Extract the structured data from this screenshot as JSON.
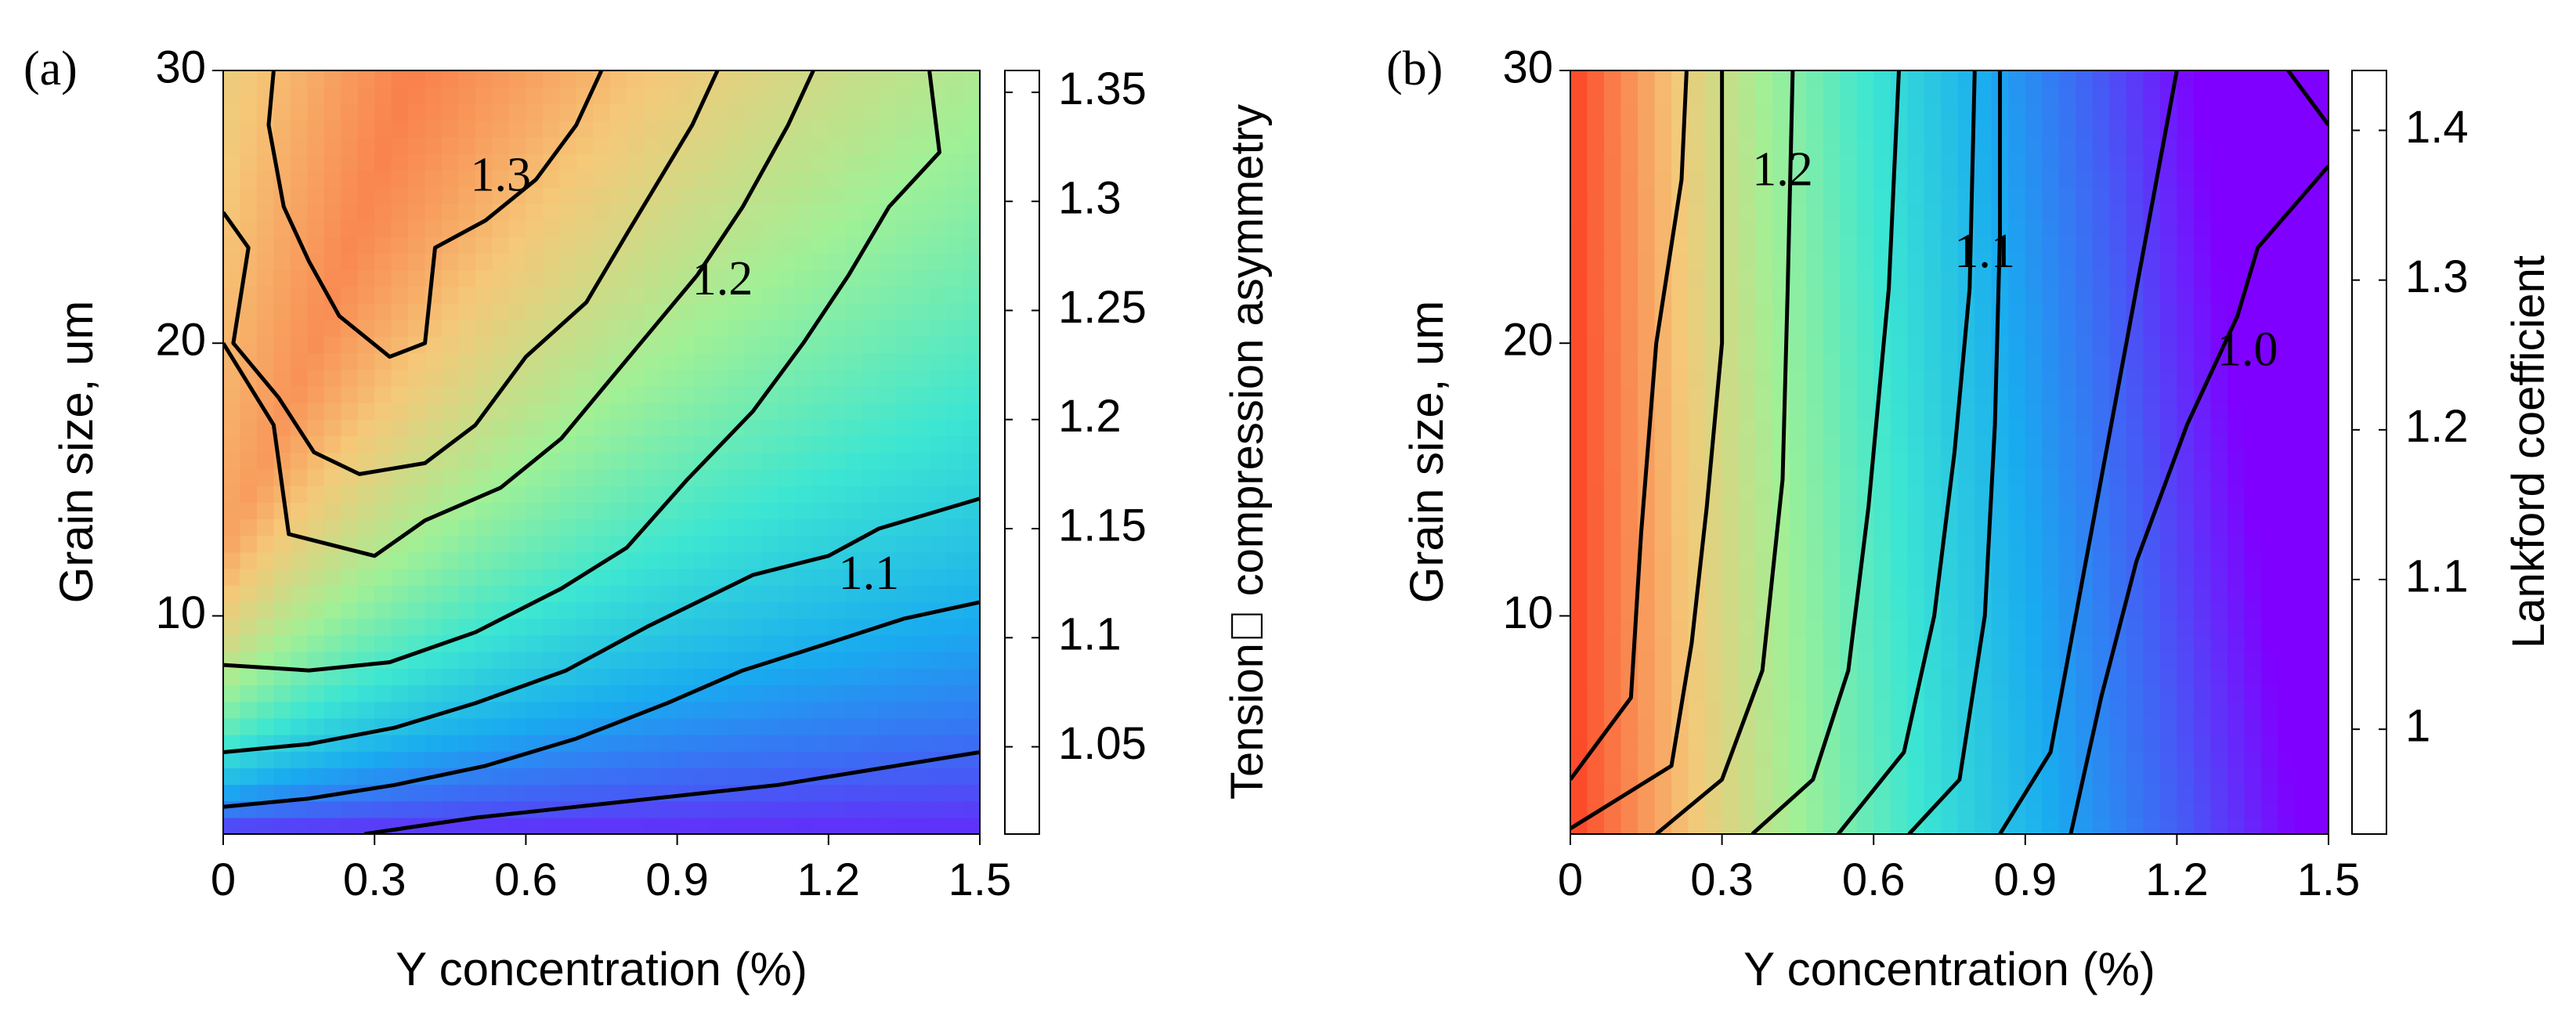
{
  "chart_data": [
    {
      "panel_label": "(a)",
      "type": "heatmap",
      "title": "",
      "xlabel": "Y concentration (%)",
      "ylabel": "Grain size, um",
      "x_ticks": [
        "0",
        "0.3",
        "0.6",
        "0.9",
        "1.2",
        "1.5"
      ],
      "x_tick_values": [
        0,
        0.3,
        0.6,
        0.9,
        1.2,
        1.5
      ],
      "y_ticks": [
        "10",
        "20",
        "30"
      ],
      "y_tick_values": [
        10,
        20,
        30
      ],
      "xlim": [
        0,
        1.5
      ],
      "ylim": [
        2,
        30
      ],
      "colorbar": {
        "label": "Tension\u0000 compression asymmetry",
        "ticks": [
          "1.05",
          "1.1",
          "1.15",
          "1.2",
          "1.25",
          "1.3",
          "1.35"
        ],
        "tick_values": [
          1.05,
          1.1,
          1.15,
          1.2,
          1.25,
          1.3,
          1.35
        ],
        "range": [
          1.01,
          1.36
        ]
      },
      "contour_labels": [
        {
          "text": "1.3",
          "x": 0.55,
          "y": 26
        },
        {
          "text": "1.2",
          "x": 0.99,
          "y": 22.2
        },
        {
          "text": "1.1",
          "x": 1.28,
          "y": 11.4
        }
      ],
      "contours": [
        {
          "level": 1.3,
          "points": [
            [
              0.1,
              30
            ],
            [
              0.09,
              28
            ],
            [
              0.12,
              25
            ],
            [
              0.17,
              23
            ],
            [
              0.23,
              21
            ],
            [
              0.33,
              19.5
            ],
            [
              0.4,
              20
            ],
            [
              0.42,
              23.5
            ],
            [
              0.52,
              24.5
            ],
            [
              0.62,
              26
            ],
            [
              0.7,
              28
            ],
            [
              0.75,
              30
            ]
          ]
        },
        {
          "level": 1.25,
          "points": [
            [
              0,
              24.8
            ],
            [
              0.05,
              23.5
            ],
            [
              0.02,
              20
            ],
            [
              0.11,
              18
            ],
            [
              0.18,
              16
            ],
            [
              0.27,
              15.2
            ],
            [
              0.4,
              15.6
            ],
            [
              0.5,
              17
            ],
            [
              0.6,
              19.5
            ],
            [
              0.72,
              21.5
            ],
            [
              0.8,
              24
            ],
            [
              0.93,
              28
            ],
            [
              0.98,
              30
            ]
          ]
        },
        {
          "level": 1.2,
          "points": [
            [
              0,
              20
            ],
            [
              0.1,
              17
            ],
            [
              0.13,
              13
            ],
            [
              0.3,
              12.2
            ],
            [
              0.4,
              13.5
            ],
            [
              0.55,
              14.7
            ],
            [
              0.67,
              16.5
            ],
            [
              0.76,
              18.5
            ],
            [
              0.85,
              20.5
            ],
            [
              0.94,
              22.5
            ],
            [
              1.03,
              25
            ],
            [
              1.12,
              28
            ],
            [
              1.17,
              30
            ]
          ]
        },
        {
          "level": 1.15,
          "points": [
            [
              0,
              8.2
            ],
            [
              0.17,
              8
            ],
            [
              0.33,
              8.3
            ],
            [
              0.5,
              9.4
            ],
            [
              0.67,
              11
            ],
            [
              0.8,
              12.5
            ],
            [
              0.92,
              15
            ],
            [
              1.05,
              17.5
            ],
            [
              1.15,
              20
            ],
            [
              1.24,
              22.5
            ],
            [
              1.32,
              25
            ],
            [
              1.42,
              27
            ],
            [
              1.4,
              30
            ]
          ]
        },
        {
          "level": 1.1,
          "points": [
            [
              0,
              5
            ],
            [
              0.17,
              5.3
            ],
            [
              0.34,
              5.9
            ],
            [
              0.5,
              6.8
            ],
            [
              0.68,
              8
            ],
            [
              0.84,
              9.6
            ],
            [
              1.05,
              11.5
            ],
            [
              1.2,
              12.2
            ],
            [
              1.3,
              13.2
            ],
            [
              1.5,
              14.3
            ]
          ]
        },
        {
          "level": 1.05,
          "points": [
            [
              0,
              3
            ],
            [
              0.17,
              3.3
            ],
            [
              0.34,
              3.8
            ],
            [
              0.52,
              4.5
            ],
            [
              0.7,
              5.5
            ],
            [
              0.88,
              6.8
            ],
            [
              1.03,
              8
            ],
            [
              1.2,
              9
            ],
            [
              1.35,
              9.9
            ],
            [
              1.5,
              10.5
            ]
          ]
        },
        {
          "level": 1.03,
          "points": [
            [
              0.28,
              2
            ],
            [
              0.5,
              2.6
            ],
            [
              0.7,
              3
            ],
            [
              0.9,
              3.4
            ],
            [
              1.1,
              3.8
            ],
            [
              1.3,
              4.4
            ],
            [
              1.5,
              5
            ]
          ]
        }
      ]
    },
    {
      "panel_label": "(b)",
      "type": "heatmap",
      "title": "",
      "xlabel": "Y concentration (%)",
      "ylabel": "Grain size, um",
      "x_ticks": [
        "0",
        "0.3",
        "0.6",
        "0.9",
        "1.2",
        "1.5"
      ],
      "x_tick_values": [
        0,
        0.3,
        0.6,
        0.9,
        1.2,
        1.5
      ],
      "y_ticks": [
        "10",
        "20",
        "30"
      ],
      "y_tick_values": [
        10,
        20,
        30
      ],
      "xlim": [
        0,
        1.5
      ],
      "ylim": [
        2,
        30
      ],
      "colorbar": {
        "label": "Lankford coefficient",
        "ticks": [
          "1",
          "1.1",
          "1.2",
          "1.3",
          "1.4"
        ],
        "tick_values": [
          1.0,
          1.1,
          1.2,
          1.3,
          1.4
        ],
        "range": [
          0.93,
          1.44
        ]
      },
      "contour_labels": [
        {
          "text": "1.2",
          "x": 0.42,
          "y": 26.2
        },
        {
          "text": "1.1",
          "x": 0.82,
          "y": 23.2
        },
        {
          "text": "1.0",
          "x": 1.34,
          "y": 19.6
        }
      ],
      "contours": [
        {
          "level": 1.35,
          "points": [
            [
              0,
              4
            ],
            [
              0.12,
              7
            ],
            [
              0.14,
              13
            ],
            [
              0.17,
              20
            ],
            [
              0.22,
              26
            ],
            [
              0.23,
              30
            ]
          ]
        },
        {
          "level": 1.3,
          "points": [
            [
              0,
              2.2
            ],
            [
              0.2,
              4.5
            ],
            [
              0.24,
              9
            ],
            [
              0.27,
              14
            ],
            [
              0.3,
              20
            ],
            [
              0.3,
              26
            ],
            [
              0.3,
              30
            ]
          ]
        },
        {
          "level": 1.25,
          "points": [
            [
              0.17,
              2
            ],
            [
              0.3,
              4
            ],
            [
              0.38,
              8
            ],
            [
              0.42,
              15
            ],
            [
              0.43,
              22
            ],
            [
              0.44,
              30
            ]
          ]
        },
        {
          "level": 1.2,
          "points": [
            [
              0.36,
              2
            ],
            [
              0.48,
              4
            ],
            [
              0.55,
              8
            ],
            [
              0.59,
              14
            ],
            [
              0.63,
              22
            ],
            [
              0.65,
              30
            ]
          ]
        },
        {
          "level": 1.15,
          "points": [
            [
              0.53,
              2
            ],
            [
              0.66,
              5
            ],
            [
              0.72,
              10
            ],
            [
              0.76,
              16
            ],
            [
              0.79,
              22
            ],
            [
              0.8,
              30
            ]
          ]
        },
        {
          "level": 1.1,
          "points": [
            [
              0.67,
              2
            ],
            [
              0.77,
              4
            ],
            [
              0.82,
              10
            ],
            [
              0.84,
              17
            ],
            [
              0.85,
              24
            ],
            [
              0.85,
              30
            ]
          ]
        },
        {
          "level": 1.05,
          "points": [
            [
              0.85,
              2
            ],
            [
              0.95,
              5
            ],
            [
              1.0,
              10
            ],
            [
              1.05,
              15
            ],
            [
              1.1,
              20
            ],
            [
              1.15,
              25
            ],
            [
              1.2,
              30
            ]
          ]
        },
        {
          "level": 1.0,
          "points": [
            [
              0.99,
              2
            ],
            [
              1.05,
              7
            ],
            [
              1.12,
              12
            ],
            [
              1.22,
              17
            ],
            [
              1.32,
              21
            ],
            [
              1.36,
              23.5
            ],
            [
              1.5,
              26.5
            ]
          ]
        },
        {
          "level": 0.95,
          "points": [
            [
              1.42,
              30
            ],
            [
              1.5,
              28
            ]
          ]
        }
      ]
    }
  ]
}
